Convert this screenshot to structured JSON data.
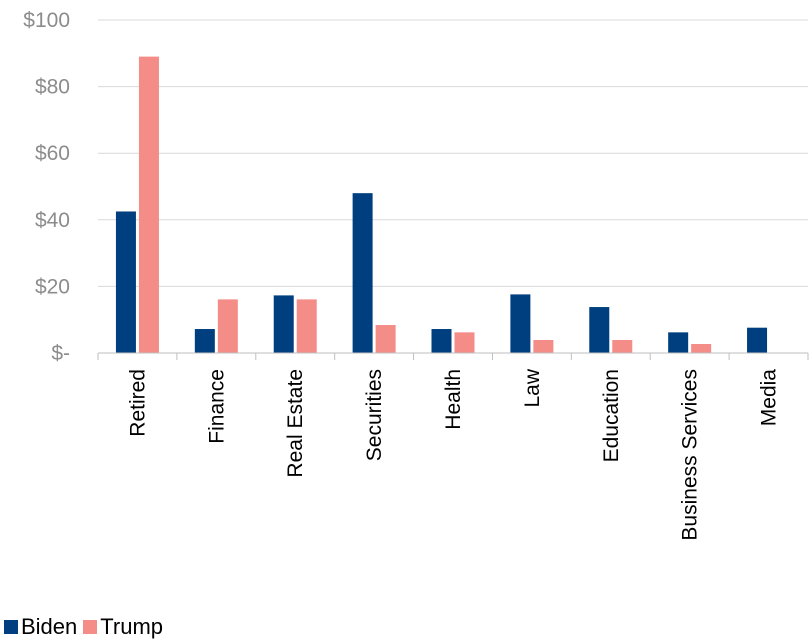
{
  "chart_data": {
    "type": "bar",
    "categories": [
      "Retired",
      "Finance",
      "Real Estate",
      "Securities",
      "Health",
      "Law",
      "Education",
      "Business Services",
      "Media"
    ],
    "series": [
      {
        "name": "Biden",
        "color": "#003f7f",
        "values": [
          42.5,
          7.2,
          17.3,
          48.0,
          7.2,
          17.6,
          13.8,
          6.2,
          7.6
        ]
      },
      {
        "name": "Trump",
        "color": "#f48c88",
        "values": [
          89.0,
          16.1,
          16.1,
          8.4,
          6.2,
          3.9,
          3.9,
          2.7,
          null
        ]
      }
    ],
    "yticks": [
      "$-",
      "$20",
      "$40",
      "$60",
      "$80",
      "$100"
    ],
    "ytick_values": [
      0,
      20,
      40,
      60,
      80,
      100
    ],
    "ylim": [
      0,
      100
    ],
    "title": "",
    "xlabel": "",
    "ylabel": "",
    "grid": true,
    "legend_position": "bottom-left"
  }
}
